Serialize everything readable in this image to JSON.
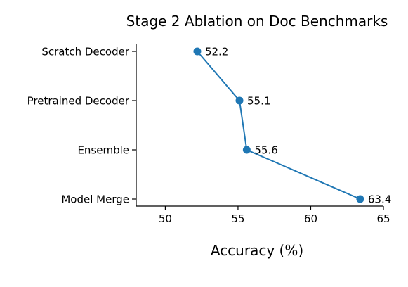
{
  "chart_data": {
    "type": "line",
    "title": "Stage 2 Ablation on Doc Benchmarks",
    "xlabel": "Accuracy (%)",
    "ylabel": "",
    "xlim": [
      48,
      65
    ],
    "xticks": [
      "50",
      "55",
      "60",
      "65"
    ],
    "categories": [
      "Scratch Decoder",
      "Pretrained Decoder",
      "Ensemble",
      "Model Merge"
    ],
    "series": [
      {
        "values": [
          52.2,
          55.1,
          55.6,
          63.4
        ]
      }
    ],
    "data_labels": [
      "52.2",
      "55.1",
      "55.6",
      "63.4"
    ],
    "grid": false,
    "color": "#1f77b4"
  }
}
